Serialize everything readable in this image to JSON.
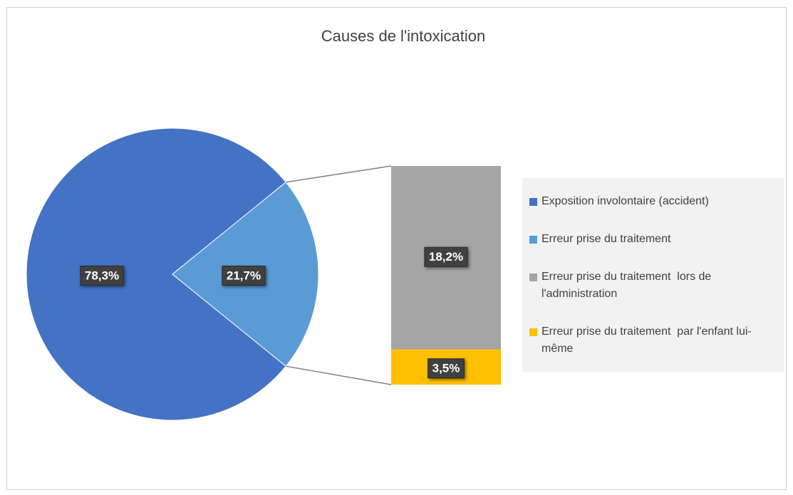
{
  "chart_data": {
    "type": "bar_of_pie",
    "title": "Causes de l'intoxication",
    "categories": [
      "Exposition involontaire (accident)",
      "Erreur prise du traitement",
      "Erreur prise du traitement  lors de l'administration",
      "Erreur prise du traitement  par l'enfant lui-même"
    ],
    "values": [
      78.3,
      21.7,
      18.2,
      3.5
    ],
    "value_labels": [
      "78,3%",
      "21,7%",
      "18,2%",
      "3,5%"
    ],
    "colors": [
      "#4472c4",
      "#5b9bd5",
      "#a5a5a5",
      "#ffc000"
    ]
  }
}
